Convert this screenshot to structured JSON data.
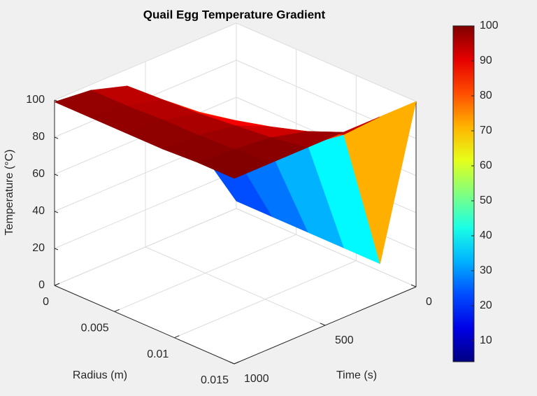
{
  "chart_data": {
    "type": "surface",
    "title": "Quail Egg Temperature Gradient",
    "xlabel": "Radius (m)",
    "ylabel": "Time (s)",
    "zlabel": "Temperature (°C)",
    "x": [
      0,
      0.003,
      0.006,
      0.009,
      0.012,
      0.015
    ],
    "y": [
      0,
      200,
      400,
      600,
      800,
      1000
    ],
    "z": [
      [
        4,
        4,
        4,
        4,
        4,
        100
      ],
      [
        40,
        45,
        55,
        68,
        82,
        100
      ],
      [
        75,
        77,
        81,
        86,
        92,
        100
      ],
      [
        91,
        92,
        93,
        95,
        97,
        100
      ],
      [
        97,
        97,
        98,
        98,
        99,
        100
      ],
      [
        99,
        99,
        99,
        99,
        100,
        100
      ]
    ],
    "xlim": [
      0,
      0.015
    ],
    "xticks": [
      0,
      0.005,
      0.01,
      0.015
    ],
    "ylim": [
      0,
      1000
    ],
    "yticks": [
      0,
      500,
      1000
    ],
    "zlim": [
      0,
      100
    ],
    "zticks": [
      0,
      20,
      40,
      60,
      80,
      100
    ],
    "clim": [
      4,
      100
    ],
    "cticks": [
      10,
      20,
      30,
      40,
      50,
      60,
      70,
      80,
      90,
      100
    ],
    "colormap": "jet",
    "grid": true
  }
}
